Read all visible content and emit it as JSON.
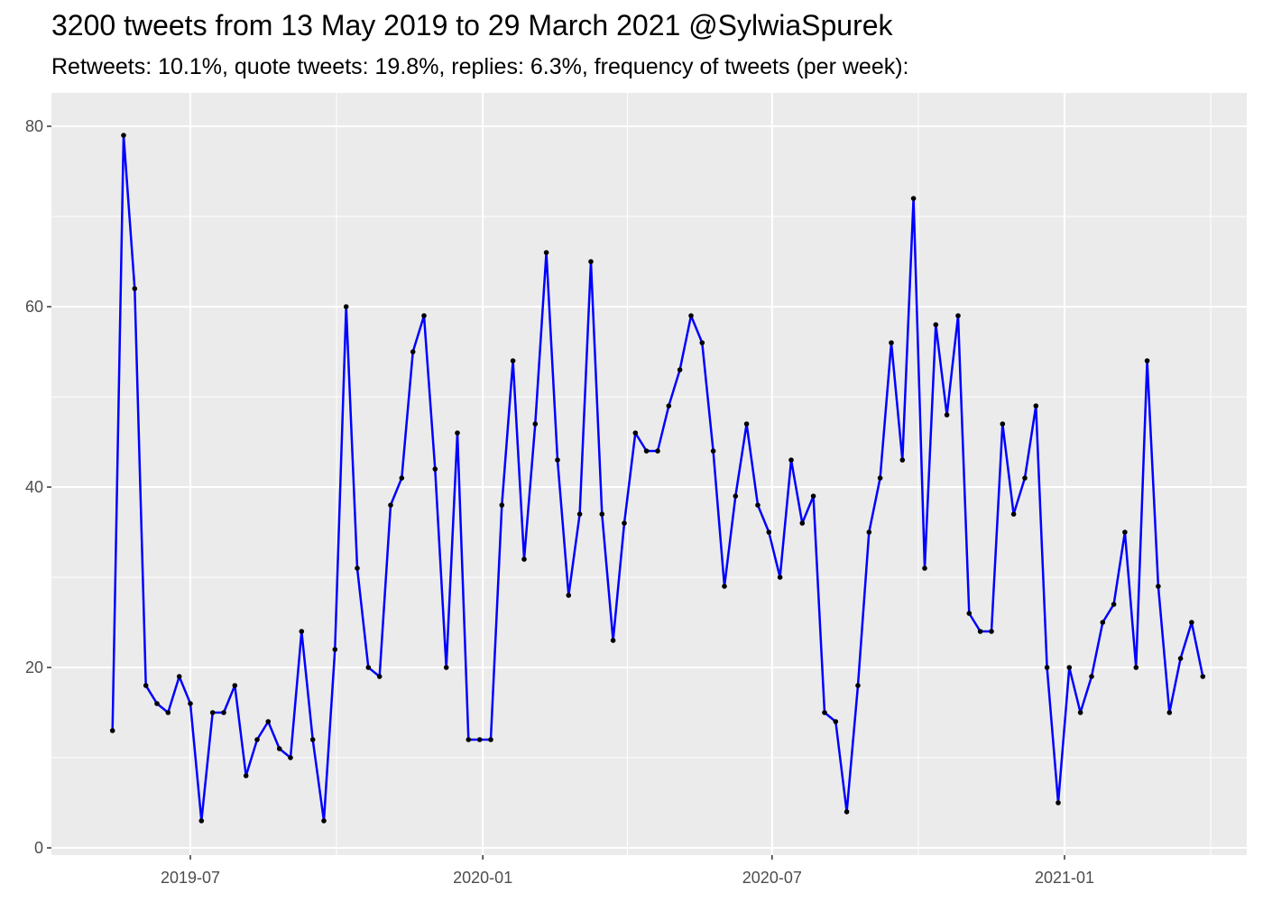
{
  "chart_data": {
    "type": "line",
    "title": "3200 tweets from 13 May 2019 to 29 March 2021 @SylwiaSpurek",
    "subtitle": "Retweets: 10.1%, quote tweets: 19.8%, replies: 6.3%, frequency of tweets (per week):",
    "xlabel": "",
    "ylabel": "",
    "ylim": [
      0,
      80
    ],
    "yticks": [
      0,
      20,
      40,
      60,
      80
    ],
    "xticks": [
      {
        "date": "2019-07-01",
        "label": "2019-07"
      },
      {
        "date": "2020-01-01",
        "label": "2020-01"
      },
      {
        "date": "2020-07-01",
        "label": "2020-07"
      },
      {
        "date": "2021-01-01",
        "label": "2021-01"
      }
    ],
    "grid": true,
    "line_color": "#0000ff",
    "point_color": "#000000",
    "panel_color": "#ebebeb",
    "series": [
      {
        "x": [
          "2019-05-13",
          "2019-05-20",
          "2019-05-27",
          "2019-06-03",
          "2019-06-10",
          "2019-06-17",
          "2019-06-24",
          "2019-07-01",
          "2019-07-08",
          "2019-07-15",
          "2019-07-22",
          "2019-07-29",
          "2019-08-05",
          "2019-08-12",
          "2019-08-19",
          "2019-08-26",
          "2019-09-02",
          "2019-09-09",
          "2019-09-16",
          "2019-09-23",
          "2019-09-30",
          "2019-10-07",
          "2019-10-14",
          "2019-10-21",
          "2019-10-28",
          "2019-11-04",
          "2019-11-11",
          "2019-11-18",
          "2019-11-25",
          "2019-12-02",
          "2019-12-09",
          "2019-12-16",
          "2019-12-23",
          "2019-12-30",
          "2020-01-06",
          "2020-01-13",
          "2020-01-20",
          "2020-01-27",
          "2020-02-03",
          "2020-02-10",
          "2020-02-17",
          "2020-02-24",
          "2020-03-02",
          "2020-03-09",
          "2020-03-16",
          "2020-03-23",
          "2020-03-30",
          "2020-04-06",
          "2020-04-13",
          "2020-04-20",
          "2020-04-27",
          "2020-05-04",
          "2020-05-11",
          "2020-05-18",
          "2020-05-25",
          "2020-06-01",
          "2020-06-08",
          "2020-06-15",
          "2020-06-22",
          "2020-06-29",
          "2020-07-06",
          "2020-07-13",
          "2020-07-20",
          "2020-07-27",
          "2020-08-03",
          "2020-08-10",
          "2020-08-17",
          "2020-08-24",
          "2020-08-31",
          "2020-09-07",
          "2020-09-14",
          "2020-09-21",
          "2020-09-28",
          "2020-10-05",
          "2020-10-12",
          "2020-10-19",
          "2020-10-26",
          "2020-11-02",
          "2020-11-09",
          "2020-11-16",
          "2020-11-23",
          "2020-11-30",
          "2020-12-07",
          "2020-12-14",
          "2020-12-21",
          "2020-12-28",
          "2021-01-04",
          "2021-01-11",
          "2021-01-18",
          "2021-01-25",
          "2021-02-01",
          "2021-02-08",
          "2021-02-15",
          "2021-02-22",
          "2021-03-01",
          "2021-03-08",
          "2021-03-15",
          "2021-03-22",
          "2021-03-29"
        ],
        "values": [
          13,
          79,
          62,
          18,
          16,
          15,
          19,
          16,
          3,
          15,
          15,
          18,
          8,
          12,
          14,
          11,
          10,
          24,
          12,
          3,
          22,
          60,
          31,
          20,
          19,
          38,
          41,
          55,
          59,
          42,
          20,
          46,
          12,
          12,
          12,
          38,
          54,
          32,
          47,
          66,
          43,
          28,
          37,
          65,
          37,
          23,
          36,
          46,
          44,
          44,
          49,
          53,
          59,
          56,
          44,
          29,
          39,
          47,
          38,
          35,
          30,
          43,
          36,
          39,
          15,
          14,
          4,
          18,
          35,
          41,
          56,
          43,
          72,
          31,
          58,
          48,
          59,
          26,
          24,
          24,
          47,
          37,
          41,
          49,
          20,
          5,
          20,
          15,
          19,
          25,
          27,
          35,
          20,
          54,
          29,
          15,
          21,
          25,
          19
        ]
      }
    ]
  }
}
